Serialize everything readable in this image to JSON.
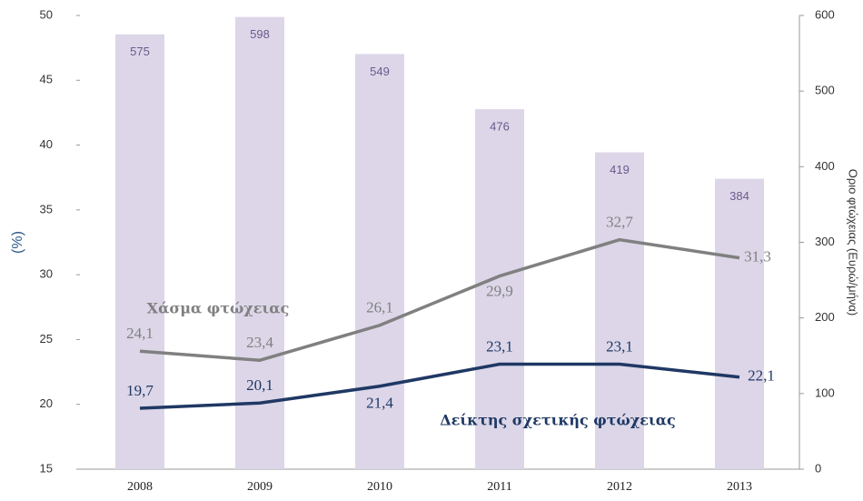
{
  "chart_data": {
    "type": "combo",
    "categories": [
      "2008",
      "2009",
      "2010",
      "2011",
      "2012",
      "2013"
    ],
    "y_label": "(%)",
    "y2_label": "Οριο φτώχειας  (Ευρώ/μήνα)",
    "ylim": [
      15,
      50
    ],
    "yticks": [
      15,
      20,
      25,
      30,
      35,
      40,
      45,
      50
    ],
    "y2lim": [
      0,
      600
    ],
    "y2ticks": [
      0,
      100,
      200,
      300,
      400,
      500,
      600
    ],
    "series": [
      {
        "type": "bar",
        "axis": "y2",
        "color": "#dcd6e8",
        "values": [
          575,
          598,
          549,
          476,
          419,
          384
        ]
      },
      {
        "type": "line",
        "name": "Χάσμα φτώχειας",
        "color": "#808080",
        "values": [
          24.1,
          23.4,
          26.1,
          29.9,
          32.7,
          31.3
        ],
        "value_labels": [
          "24,1",
          "23,4",
          "26,1",
          "29,9",
          "32,7",
          "31,3"
        ]
      },
      {
        "type": "line",
        "name": "Δείκτης σχετικής φτώχειας",
        "color": "#1f3864",
        "values": [
          19.7,
          20.1,
          21.4,
          23.1,
          23.1,
          22.1
        ],
        "value_labels": [
          "19,7",
          "20,1",
          "21,4",
          "23,1",
          "23,1",
          "22,1"
        ]
      }
    ]
  }
}
